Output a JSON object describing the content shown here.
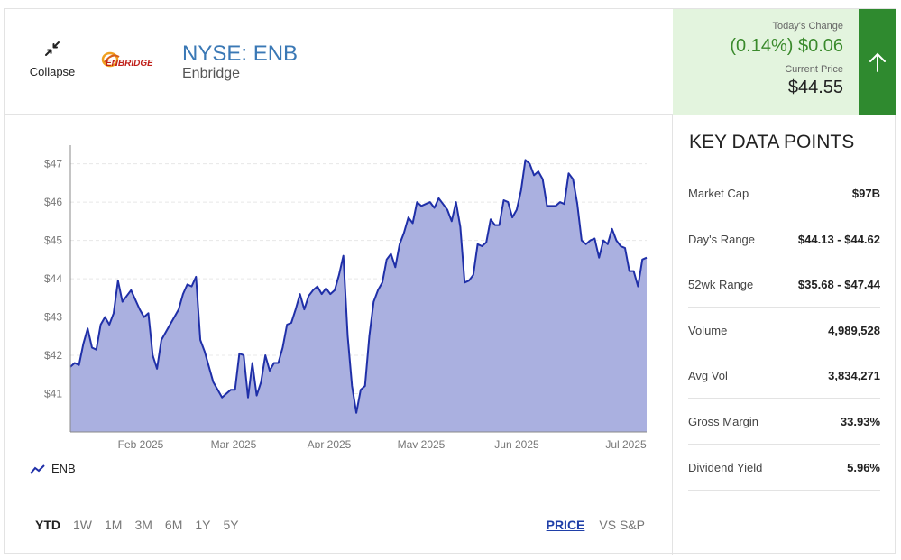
{
  "header": {
    "collapse_label": "Collapse",
    "logo_text": "ENBRIDGE",
    "ticker": "NYSE: ENB",
    "company": "Enbridge"
  },
  "quote": {
    "change_label": "Today's Change",
    "change": "(0.14%) $0.06",
    "price_label": "Current Price",
    "price": "$44.55",
    "direction": "up",
    "colors": {
      "positive": "#3a8a2c",
      "arrow_bg": "#2f8a2f",
      "panel_bg": "#e3f4de"
    }
  },
  "chart_data": {
    "type": "area",
    "series": [
      {
        "name": "ENB",
        "color": "#1f2fa8",
        "fill": "#aab0e0",
        "values": [
          41.7,
          41.8,
          41.75,
          42.3,
          42.7,
          42.2,
          42.15,
          42.8,
          43.0,
          42.8,
          43.1,
          43.95,
          43.4,
          43.55,
          43.7,
          43.45,
          43.2,
          43.0,
          43.1,
          42.0,
          41.65,
          42.4,
          42.6,
          42.8,
          43.0,
          43.2,
          43.6,
          43.85,
          43.8,
          44.05,
          42.4,
          42.1,
          41.7,
          41.3,
          41.1,
          40.9,
          41.0,
          41.1,
          41.1,
          42.05,
          42.0,
          40.9,
          41.8,
          40.95,
          41.3,
          42.0,
          41.6,
          41.8,
          41.8,
          42.2,
          42.8,
          42.85,
          43.2,
          43.6,
          43.2,
          43.55,
          43.7,
          43.8,
          43.6,
          43.75,
          43.6,
          43.7,
          44.1,
          44.6,
          42.5,
          41.2,
          40.5,
          41.1,
          41.2,
          42.5,
          43.4,
          43.7,
          43.9,
          44.5,
          44.65,
          44.3,
          44.9,
          45.2,
          45.6,
          45.45,
          46.0,
          45.9,
          45.95,
          46.0,
          45.85,
          46.1,
          45.95,
          45.8,
          45.5,
          46.0,
          45.35,
          43.9,
          43.95,
          44.1,
          44.9,
          44.85,
          44.95,
          45.55,
          45.4,
          45.4,
          46.05,
          46.0,
          45.6,
          45.8,
          46.3,
          47.1,
          47.0,
          46.7,
          46.8,
          46.6,
          45.9,
          45.9,
          45.9,
          46.0,
          45.95,
          46.75,
          46.6,
          45.95,
          45.0,
          44.9,
          45.0,
          45.05,
          44.55,
          45.0,
          44.9,
          45.3,
          45.0,
          44.85,
          44.8,
          44.2,
          44.2,
          43.8,
          44.5,
          44.55
        ]
      }
    ],
    "x_ticks": [
      "Feb 2025",
      "Mar 2025",
      "Apr 2025",
      "May 2025",
      "Jun 2025",
      "Jul 2025"
    ],
    "y_ticks": [
      "$47",
      "$46",
      "$45",
      "$44",
      "$43",
      "$42",
      "$41"
    ],
    "ylim": [
      40,
      47.25
    ],
    "grid": true,
    "legend": "bottom-left"
  },
  "ranges": [
    {
      "label": "YTD",
      "active": true
    },
    {
      "label": "1W",
      "active": false
    },
    {
      "label": "1M",
      "active": false
    },
    {
      "label": "3M",
      "active": false
    },
    {
      "label": "6M",
      "active": false
    },
    {
      "label": "1Y",
      "active": false
    },
    {
      "label": "5Y",
      "active": false
    }
  ],
  "modes": [
    {
      "label": "PRICE",
      "active": true
    },
    {
      "label": "VS S&P",
      "active": false
    }
  ],
  "key_data": {
    "title": "KEY DATA POINTS",
    "rows": [
      {
        "label": "Market Cap",
        "value": "$97B"
      },
      {
        "label": "Day's Range",
        "value": "$44.13 - $44.62"
      },
      {
        "label": "52wk Range",
        "value": "$35.68 - $47.44"
      },
      {
        "label": "Volume",
        "value": "4,989,528"
      },
      {
        "label": "Avg Vol",
        "value": "3,834,271"
      },
      {
        "label": "Gross Margin",
        "value": "33.93%"
      },
      {
        "label": "Dividend Yield",
        "value": "5.96%"
      }
    ]
  }
}
